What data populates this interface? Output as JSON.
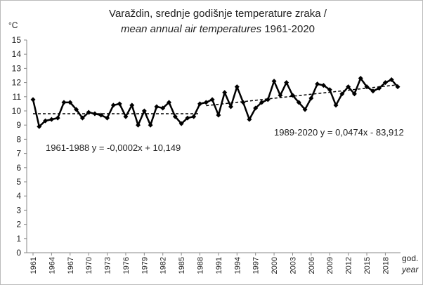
{
  "chart_data": {
    "type": "line",
    "title": {
      "line1": "Varaždin, srednje godišnje temperature zraka /",
      "line2_italic": "mean annual air temperatures",
      "line2_rest": "1961-2020"
    },
    "y_unit": "°C",
    "x_label": "god.",
    "x_label_en": "year",
    "x": [
      1961,
      1962,
      1963,
      1964,
      1965,
      1966,
      1967,
      1968,
      1969,
      1970,
      1971,
      1972,
      1973,
      1974,
      1975,
      1976,
      1977,
      1978,
      1979,
      1980,
      1981,
      1982,
      1983,
      1984,
      1985,
      1986,
      1987,
      1988,
      1989,
      1990,
      1991,
      1992,
      1993,
      1994,
      1995,
      1996,
      1997,
      1998,
      1999,
      2000,
      2001,
      2002,
      2003,
      2004,
      2005,
      2006,
      2007,
      2008,
      2009,
      2010,
      2011,
      2012,
      2013,
      2014,
      2015,
      2016,
      2017,
      2018,
      2019,
      2020
    ],
    "series": [
      {
        "color": "#000000",
        "values": [
          10.8,
          8.9,
          9.3,
          9.4,
          9.5,
          10.6,
          10.6,
          10.1,
          9.5,
          9.9,
          9.8,
          9.7,
          9.5,
          10.4,
          10.5,
          9.6,
          10.4,
          9.0,
          10.0,
          9.0,
          10.3,
          10.2,
          10.6,
          9.6,
          9.1,
          9.5,
          9.6,
          10.5,
          10.6,
          10.8,
          9.7,
          11.3,
          10.3,
          11.7,
          10.6,
          9.4,
          10.2,
          10.6,
          10.8,
          12.1,
          11.1,
          12.0,
          11.1,
          10.6,
          10.1,
          10.9,
          11.9,
          11.8,
          11.5,
          10.4,
          11.2,
          11.7,
          11.2,
          12.3,
          11.7,
          11.4,
          11.6,
          12.0,
          12.2,
          11.7
        ]
      }
    ],
    "trendlines": [
      {
        "label": "1961-1988 y = -0,0002x + 10,149",
        "x": [
          1961,
          1988
        ],
        "values": [
          9.8,
          9.8
        ]
      },
      {
        "label": "1989-2020 y = 0,0474x - 83,912",
        "x": [
          1989,
          2020
        ],
        "values": [
          10.37,
          11.84
        ]
      }
    ],
    "xlim": [
      1961,
      2020
    ],
    "xticks": [
      1961,
      1964,
      1967,
      1970,
      1973,
      1976,
      1979,
      1982,
      1985,
      1988,
      1991,
      1994,
      1997,
      2000,
      2003,
      2006,
      2009,
      2012,
      2015,
      2018
    ],
    "ylim": [
      0,
      15
    ],
    "yticks": [
      0,
      1,
      2,
      3,
      4,
      5,
      6,
      7,
      8,
      9,
      10,
      11,
      12,
      13,
      14,
      15
    ],
    "grid": false
  }
}
